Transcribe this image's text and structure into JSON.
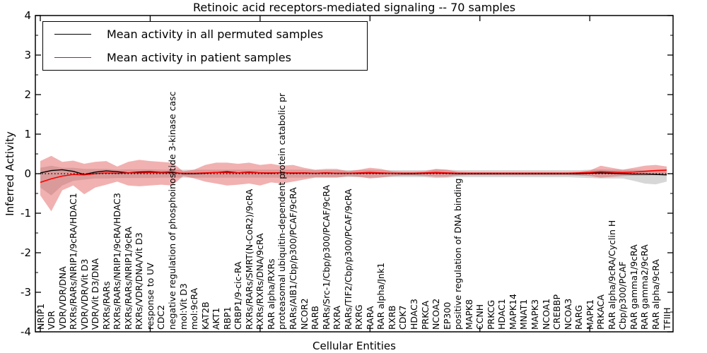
{
  "chart_data": {
    "type": "line",
    "title": "Retinoic acid receptors-mediated signaling -- 70 samples",
    "xlabel": "Cellular Entities",
    "ylabel": "Inferred Activity",
    "ylim": [
      -4,
      4
    ],
    "yticks_major": [
      4,
      3,
      2,
      1,
      0,
      -1,
      -2,
      -3,
      -4
    ],
    "ytick_labels": [
      "4",
      "3",
      "2",
      "1",
      "0",
      "-1",
      "-2",
      "-3",
      "-4"
    ],
    "yticks_minor": [
      3.5,
      2.5,
      1.5,
      0.5,
      -0.5,
      -1.5,
      -2.5,
      -3.5
    ],
    "xticks_major_indices": [
      0,
      10,
      20,
      30,
      40,
      50
    ],
    "grid": false,
    "legend_position": "upper left",
    "zero_line": {
      "style": "dotted",
      "color": "#000000",
      "y": 0
    },
    "legend": [
      {
        "label": "Mean activity in all permuted samples",
        "color": "#000000"
      },
      {
        "label": "Mean activity in patient samples",
        "color": "#ff0000"
      }
    ],
    "categories": [
      "NRIP1",
      "VDR",
      "VDR/VDR/DNA",
      "RXRs/RARs/NRIP1/9cRA/HDAC1",
      "VDR/VDR/Vit D3",
      "VDR/Vit D3/DNA",
      "RXRs/RARs",
      "RXRs/RARs/NRIP1/9cRA/HDAC3",
      "RXRs/RARs/NRIP1/9cRA",
      "RXRs/VDR/DNA/Vit D3",
      "response to UV",
      "CDC2",
      "negative regulation of phosphoinositide 3-kinase casc",
      "mol:Vit D3",
      "mol:9cRA",
      "KAT2B",
      "AKT1",
      "RBP1",
      "CRBP1/9-cic-RA",
      "RXRs/RARs/SMRT(N-CoR2)/9cRA",
      "RXRs/RXRs/DNA/9cRA",
      "RAR alpha/RXRs",
      "proteasomal ubiquitin-dependent protein catabolic pr",
      "RARs/AIB1/Cbp/p300/PCAF/9cRA",
      "NCOR2",
      "RARB",
      "RARs/Src-1/Cbp/p300/PCAF/9cRA",
      "RXRA",
      "RARs/TIF2/Cbp/p300/PCAF/9cRA",
      "RXRG",
      "RARA",
      "RAR alpha/Jnk1",
      "RXRB",
      "CDK7",
      "HDAC3",
      "PRKCA",
      "NCOA2",
      "EP300",
      "positive regulation of DNA binding",
      "MAPK8",
      "CCNH",
      "PRKCG",
      "HDAC1",
      "MAPK14",
      "MNAT1",
      "MAPK3",
      "NCOA1",
      "CREBBP",
      "NCOA3",
      "RARG",
      "MAPK1",
      "PRKACA",
      "RAR alpha/9cRA/Cyclin H",
      "Cbp/p300/PCAF",
      "RAR gamma1/9cRA",
      "RAR gamma2/9cRA",
      "RAR alpha/9cRA",
      "TFIIH"
    ],
    "series": [
      {
        "name": "Mean activity in all permuted samples",
        "color": "#000000",
        "values": [
          0.02,
          0.08,
          0.1,
          0.06,
          -0.02,
          0.04,
          0.07,
          0.05,
          0.02,
          0.04,
          0.05,
          0.03,
          0.04,
          0.0,
          0.0,
          0.01,
          0.03,
          0.05,
          0.02,
          0.04,
          0.02,
          0.01,
          0.03,
          0.01,
          0.02,
          0.01,
          0.02,
          0.01,
          0.01,
          0.01,
          0.02,
          0.01,
          0.01,
          0.0,
          0.0,
          0.01,
          0.02,
          0.01,
          0.0,
          0.0,
          0.0,
          0.0,
          0.0,
          0.0,
          0.0,
          0.0,
          0.0,
          0.0,
          0.0,
          0.0,
          0.01,
          0.02,
          0.01,
          0.0,
          -0.01,
          -0.01,
          -0.02,
          -0.03
        ]
      },
      {
        "name": "Mean activity in patient samples",
        "color": "#ff0000",
        "values": [
          -0.22,
          -0.13,
          -0.06,
          -0.02,
          -0.03,
          0.0,
          0.02,
          0.01,
          0.02,
          0.02,
          0.03,
          0.02,
          0.02,
          0.01,
          0.01,
          0.02,
          0.03,
          0.03,
          0.02,
          0.03,
          0.02,
          0.02,
          0.02,
          0.02,
          0.02,
          0.01,
          0.02,
          0.01,
          0.01,
          0.02,
          0.03,
          0.02,
          0.01,
          0.01,
          0.01,
          0.02,
          0.03,
          0.02,
          0.01,
          0.01,
          0.01,
          0.01,
          0.01,
          0.01,
          0.01,
          0.01,
          0.01,
          0.01,
          0.01,
          0.02,
          0.03,
          0.05,
          0.04,
          0.03,
          0.04,
          0.06,
          0.08,
          0.09
        ]
      }
    ],
    "bands": [
      {
        "name": "permuted-range",
        "color": "#bdbdbd",
        "opacity": 0.6,
        "upper": [
          0.15,
          0.2,
          0.15,
          0.15,
          0.12,
          0.12,
          0.12,
          0.1,
          0.11,
          0.11,
          0.11,
          0.1,
          0.1,
          0.1,
          0.1,
          0.1,
          0.1,
          0.1,
          0.1,
          0.1,
          0.1,
          0.1,
          0.1,
          0.1,
          0.1,
          0.09,
          0.09,
          0.09,
          0.09,
          0.09,
          0.1,
          0.09,
          0.09,
          0.09,
          0.09,
          0.09,
          0.11,
          0.1,
          0.09,
          0.09,
          0.09,
          0.09,
          0.09,
          0.09,
          0.09,
          0.09,
          0.09,
          0.09,
          0.09,
          0.09,
          0.1,
          0.11,
          0.1,
          0.1,
          0.1,
          0.09,
          0.09,
          0.1
        ],
        "lower": [
          -0.35,
          -0.55,
          -0.3,
          -0.18,
          -0.15,
          -0.12,
          -0.12,
          -0.11,
          -0.11,
          -0.11,
          -0.11,
          -0.1,
          -0.1,
          -0.1,
          -0.1,
          -0.1,
          -0.1,
          -0.1,
          -0.1,
          -0.1,
          -0.1,
          -0.1,
          -0.1,
          -0.1,
          -0.1,
          -0.09,
          -0.09,
          -0.09,
          -0.09,
          -0.09,
          -0.1,
          -0.09,
          -0.09,
          -0.09,
          -0.09,
          -0.09,
          -0.11,
          -0.1,
          -0.09,
          -0.09,
          -0.09,
          -0.09,
          -0.09,
          -0.09,
          -0.09,
          -0.09,
          -0.09,
          -0.09,
          -0.09,
          -0.1,
          -0.11,
          -0.12,
          -0.12,
          -0.12,
          -0.18,
          -0.25,
          -0.27,
          -0.2
        ]
      },
      {
        "name": "patient-range",
        "color": "#dd4444",
        "opacity": 0.42,
        "upper": [
          0.32,
          0.45,
          0.3,
          0.33,
          0.25,
          0.3,
          0.32,
          0.18,
          0.3,
          0.35,
          0.32,
          0.3,
          0.28,
          0.06,
          0.1,
          0.22,
          0.28,
          0.28,
          0.25,
          0.28,
          0.22,
          0.25,
          0.2,
          0.22,
          0.15,
          0.1,
          0.12,
          0.12,
          0.06,
          0.1,
          0.15,
          0.12,
          0.06,
          0.05,
          0.05,
          0.06,
          0.12,
          0.1,
          0.05,
          0.04,
          0.04,
          0.04,
          0.04,
          0.04,
          0.04,
          0.04,
          0.04,
          0.04,
          0.04,
          0.05,
          0.08,
          0.2,
          0.15,
          0.1,
          0.15,
          0.2,
          0.22,
          0.18
        ],
        "lower": [
          -0.55,
          -0.95,
          -0.42,
          -0.3,
          -0.52,
          -0.35,
          -0.28,
          -0.2,
          -0.3,
          -0.32,
          -0.3,
          -0.28,
          -0.3,
          -0.06,
          -0.12,
          -0.2,
          -0.25,
          -0.3,
          -0.28,
          -0.25,
          -0.3,
          -0.22,
          -0.25,
          -0.2,
          -0.15,
          -0.1,
          -0.1,
          -0.1,
          -0.06,
          -0.08,
          -0.12,
          -0.1,
          -0.06,
          -0.05,
          -0.05,
          -0.06,
          -0.08,
          -0.08,
          -0.05,
          -0.04,
          -0.04,
          -0.04,
          -0.04,
          -0.04,
          -0.04,
          -0.04,
          -0.04,
          -0.04,
          -0.04,
          -0.05,
          -0.06,
          -0.1,
          -0.08,
          -0.06,
          -0.05,
          -0.05,
          -0.03,
          -0.02
        ]
      }
    ]
  }
}
